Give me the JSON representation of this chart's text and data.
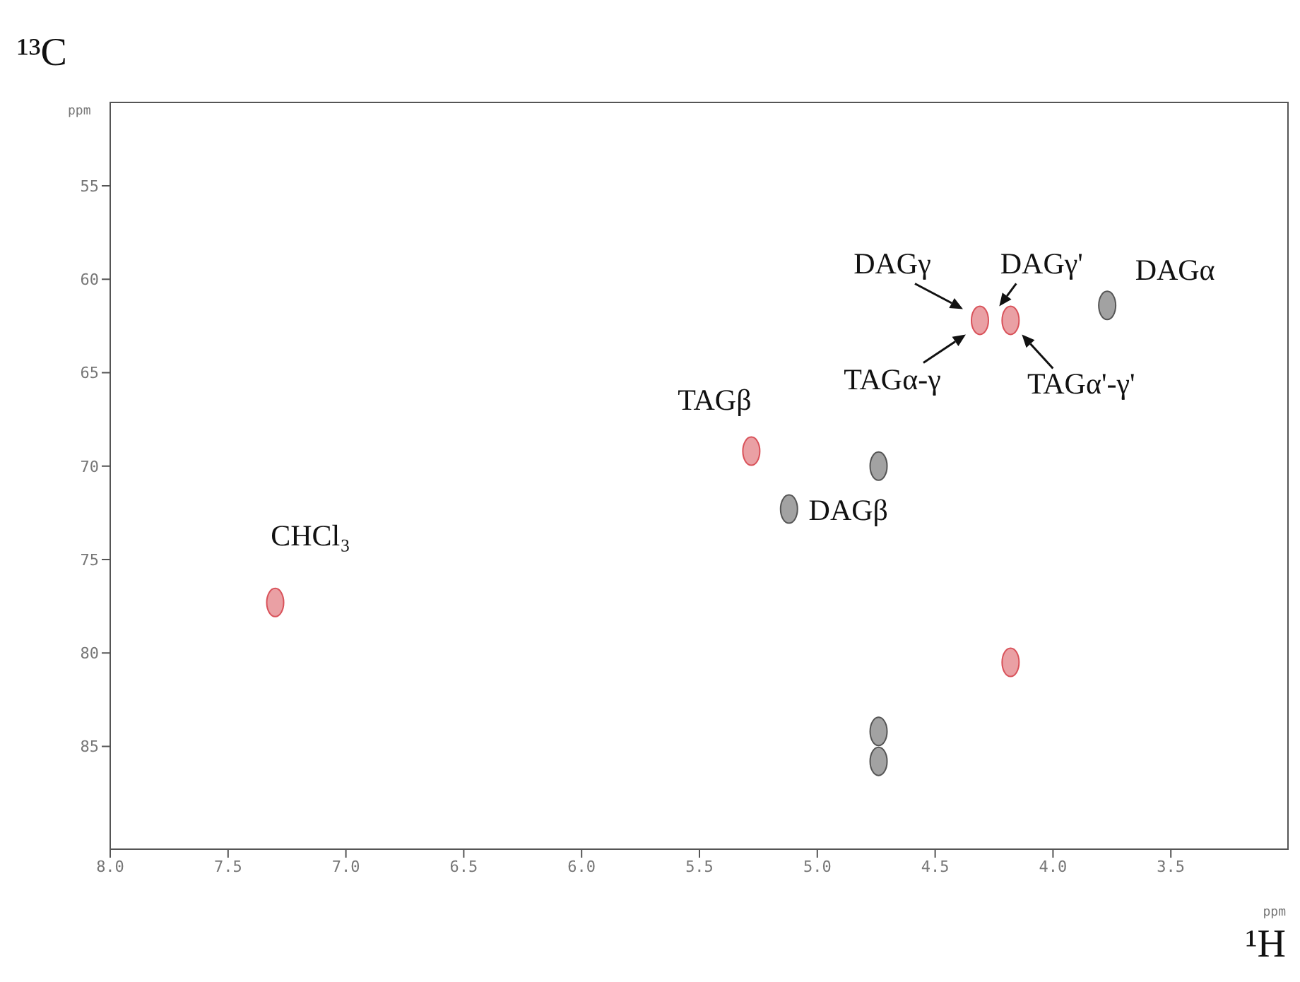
{
  "chart_data": {
    "type": "scatter",
    "xlabel": "¹H",
    "ylabel": "¹³C",
    "xlim": [
      8.0,
      3.0
    ],
    "ylim": [
      90.5,
      50.5
    ],
    "xticks": [
      {
        "value": 8,
        "label": "8.0"
      },
      {
        "value": 7.5,
        "label": "7.5"
      },
      {
        "value": 7,
        "label": "7.0"
      },
      {
        "value": 6.5,
        "label": "6.5"
      },
      {
        "value": 6,
        "label": "6.0"
      },
      {
        "value": 5.5,
        "label": "5.5"
      },
      {
        "value": 5,
        "label": "5.0"
      },
      {
        "value": 4.5,
        "label": "4.5"
      },
      {
        "value": 4,
        "label": "4.0"
      },
      {
        "value": 3.5,
        "label": "3.5"
      }
    ],
    "yticks": [
      55,
      60,
      65,
      70,
      75,
      80,
      85
    ],
    "marker": "circle",
    "grid": false,
    "legend": false,
    "series": [
      {
        "color": "#d9525a",
        "x": [
          7.3,
          5.28,
          4.31,
          4.18,
          4.18
        ],
        "values": [
          77.3,
          69.2,
          62.2,
          62.2,
          80.5
        ]
      },
      {
        "color": "#555555",
        "x": [
          5.12,
          3.77,
          4.74,
          4.74,
          4.74
        ],
        "values": [
          72.3,
          61.4,
          70.0,
          84.2,
          85.8
        ]
      }
    ],
    "annotations": [
      "ppm",
      "ppm",
      {
        "text": "DAGγ",
        "x": 4.31,
        "y": 62.2
      },
      {
        "text": "DAGγ'",
        "x": 4.18,
        "y": 62.2
      },
      {
        "text": "TAGα-γ",
        "x": 4.31,
        "y": 62.2
      },
      {
        "text": "TAGα'-γ'",
        "x": 4.18,
        "y": 62.2
      },
      {
        "text": "DAGα",
        "x": 3.77,
        "y": 61.4
      },
      {
        "text": "TAGβ",
        "x": 5.28,
        "y": 69.2
      },
      {
        "text": "DAGβ",
        "x": 5.12,
        "y": 72.3
      },
      {
        "text": "CHCl₃",
        "x": 7.3,
        "y": 77.3
      }
    ]
  }
}
